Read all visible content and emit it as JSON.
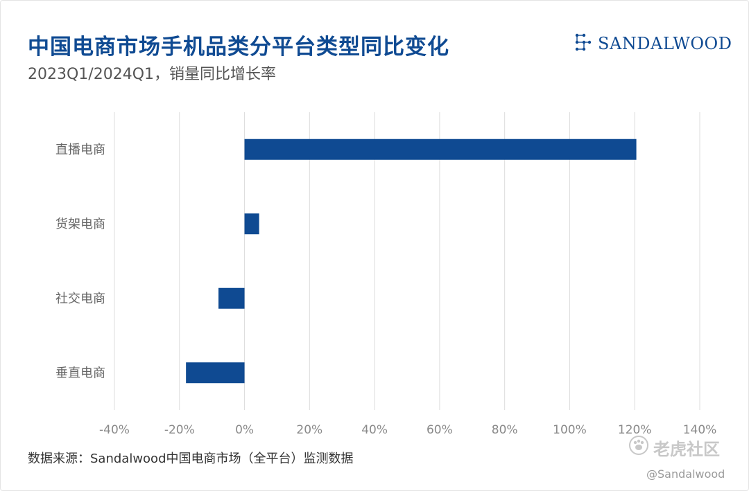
{
  "header": {
    "title": "中国电商市场手机品类分平台类型同比变化",
    "subtitle": "2023Q1/2024Q1，销量同比增长率"
  },
  "brand": {
    "name": "SANDALWOOD",
    "icon": "constellation-logo-icon",
    "color": "#0f4a92"
  },
  "footer": {
    "source": "数据来源：Sandalwood中国电商市场（全平台）监测数据",
    "watermark": "老虎社区",
    "handle": "@Sandalwood"
  },
  "chart_data": {
    "type": "bar",
    "orientation": "horizontal",
    "categories": [
      "直播电商",
      "货架电商",
      "社交电商",
      "垂直电商"
    ],
    "values": [
      120.5,
      4.5,
      -8,
      -18
    ],
    "unit": "%",
    "xlim": [
      -40,
      140
    ],
    "xticks": [
      -40,
      -20,
      0,
      20,
      40,
      60,
      80,
      100,
      120,
      140
    ],
    "xtick_labels": [
      "-40%",
      "-20%",
      "0%",
      "20%",
      "40%",
      "60%",
      "80%",
      "100%",
      "120%",
      "140%"
    ],
    "grid": "vertical",
    "legend": "none",
    "bar_color": "#0f4a92",
    "grid_color": "#dcdcdc"
  }
}
